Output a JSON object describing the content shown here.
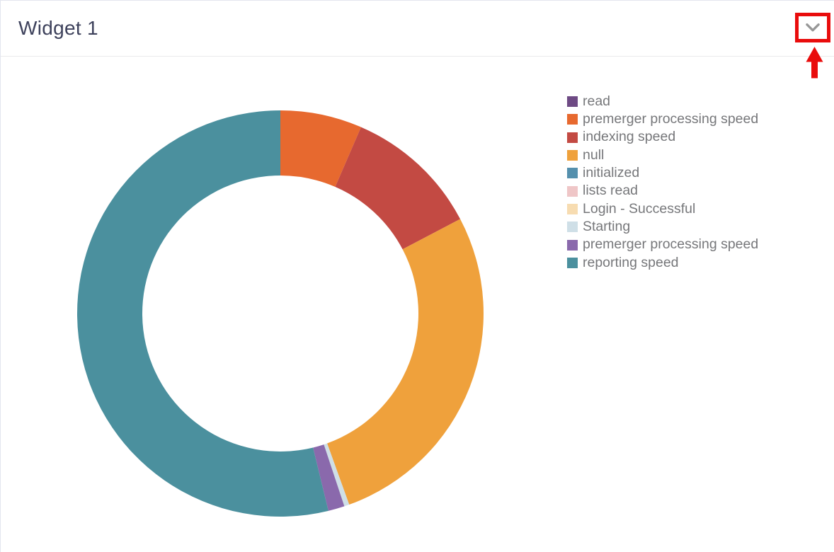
{
  "header": {
    "title": "Widget 1",
    "collapse_button": {
      "icon": "chevron-down"
    }
  },
  "annotation": {
    "type": "highlight-box-with-arrow",
    "target": "collapse-button",
    "color": "#e90c0c"
  },
  "chart_data": {
    "type": "pie",
    "style": "donut",
    "inner_radius_ratio": 0.68,
    "start_angle_deg": 0,
    "direction": "clockwise",
    "legend_position": "right",
    "values_estimated_from_pixels": true,
    "series": [
      {
        "label": "read",
        "color": "#6e4a84",
        "percent": 0
      },
      {
        "label": "premerger processing speed",
        "color": "#e7692f",
        "percent": 6.5
      },
      {
        "label": "indexing speed",
        "color": "#c34a43",
        "percent": 10.8
      },
      {
        "label": "null",
        "color": "#efa13c",
        "percent": 27.2
      },
      {
        "label": "initialized",
        "color": "#5590ad",
        "percent": 0
      },
      {
        "label": "lists read",
        "color": "#efc6c7",
        "percent": 0
      },
      {
        "label": "Login - Successful",
        "color": "#f7dcb1",
        "percent": 0
      },
      {
        "label": "Starting",
        "color": "#cfdfe7",
        "percent": 0.4
      },
      {
        "label": "premerger processing speed",
        "color": "#8a69ac",
        "percent": 1.3
      },
      {
        "label": "reporting speed",
        "color": "#4b909e",
        "percent": 53.8
      }
    ]
  }
}
